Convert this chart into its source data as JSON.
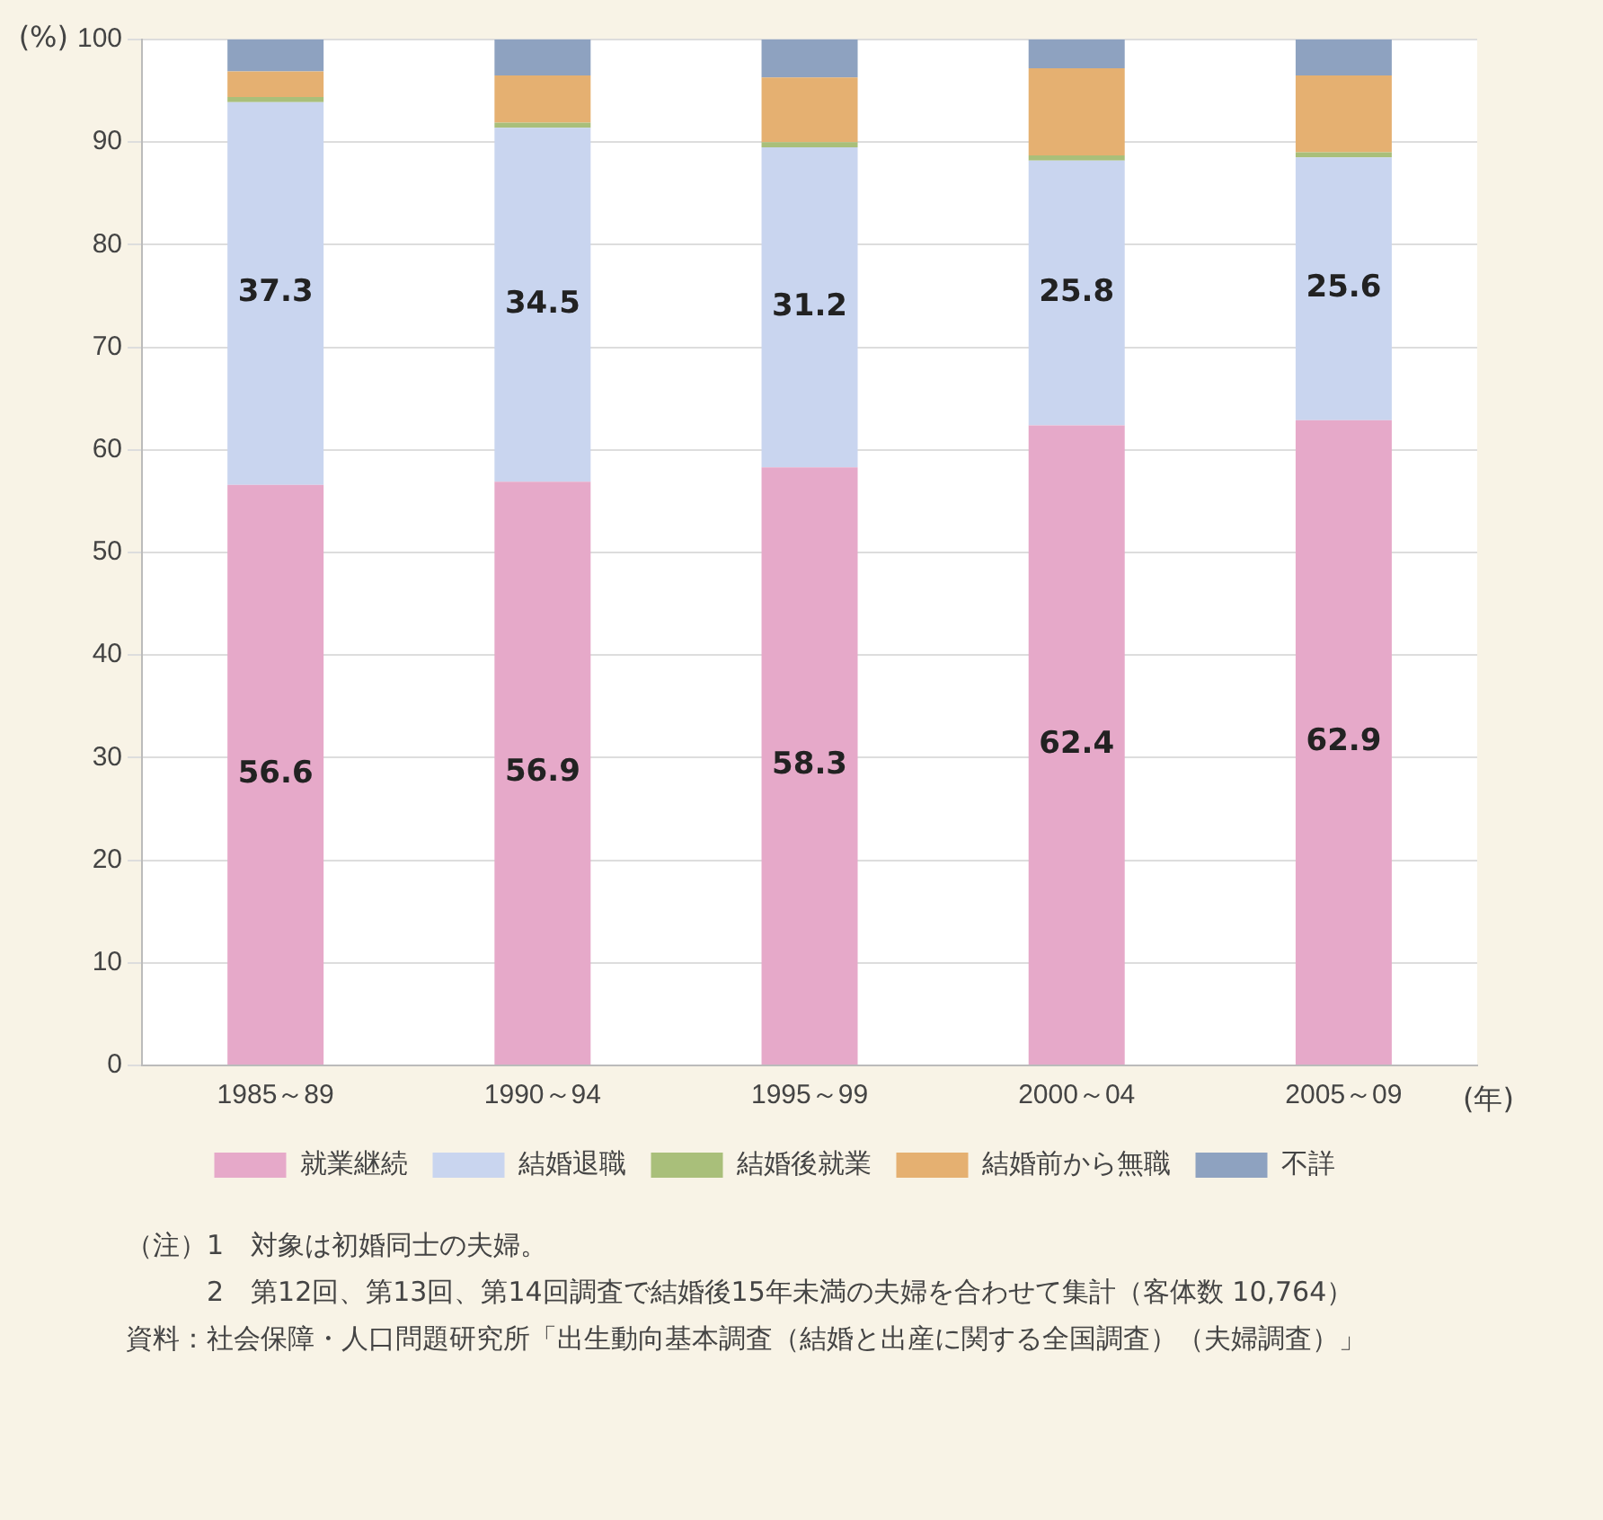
{
  "chart_data": {
    "type": "bar",
    "stacked": true,
    "ylabel": "(%)",
    "xlabel": "(年)",
    "categories": [
      "1985～89",
      "1990～94",
      "1995～99",
      "2000～04",
      "2005～09"
    ],
    "series": [
      {
        "name": "就業継続",
        "color": "#e6a9c9",
        "values": [
          56.6,
          56.9,
          58.3,
          62.4,
          62.9
        ],
        "value_labels": [
          "56.6",
          "56.9",
          "58.3",
          "62.4",
          "62.9"
        ]
      },
      {
        "name": "結婚退職",
        "color": "#c9d5ef",
        "values": [
          37.3,
          34.5,
          31.2,
          25.8,
          25.6
        ],
        "value_labels": [
          "37.3",
          "34.5",
          "31.2",
          "25.8",
          "25.6"
        ]
      },
      {
        "name": "結婚後就業",
        "color": "#a9bf7a",
        "values": [
          0.5,
          0.5,
          0.5,
          0.5,
          0.5
        ]
      },
      {
        "name": "結婚前から無職",
        "color": "#e5b071",
        "values": [
          2.5,
          4.6,
          6.3,
          8.5,
          7.5
        ]
      },
      {
        "name": "不詳",
        "color": "#8ea2c0",
        "values": [
          3.1,
          3.5,
          3.7,
          2.8,
          3.5
        ]
      }
    ],
    "ylim": [
      0,
      100
    ],
    "yticks": [
      0,
      10,
      20,
      30,
      40,
      50,
      60,
      70,
      80,
      90,
      100
    ],
    "grid": "y",
    "legend": "bottom",
    "annotations": [
      "（注）1　対象は初婚同士の夫婦。",
      "　　　2　第12回、第13回、第14回調査で結婚後15年未満の夫婦を合わせて集計（客体数 10,764）",
      "資料：社会保障・人口問題研究所「出生動向基本調査（結婚と出産に関する全国調査）（夫婦調査）」"
    ]
  }
}
